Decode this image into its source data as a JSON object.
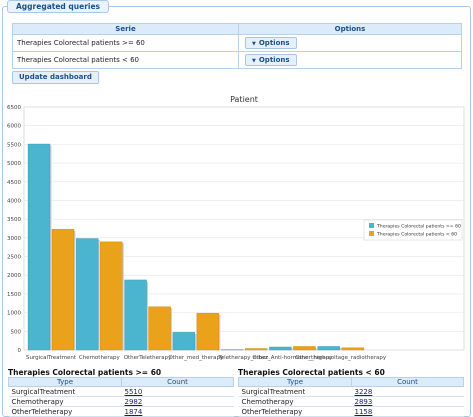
{
  "panel": {
    "title": "Aggregated queries"
  },
  "series_table": {
    "headers": [
      "Serie",
      "Options"
    ],
    "rows": [
      {
        "serie": "Therapies Colorectal patients >= 60",
        "options_label": "Options"
      },
      {
        "serie": "Therapies Colorectal patients < 60",
        "options_label": "Options"
      }
    ]
  },
  "update_button": "Update dashboard",
  "colors": {
    "series1": "#4bb4ce",
    "series2": "#eaa21b",
    "accent": "#1b4f8a"
  },
  "chart_data": {
    "type": "bar",
    "title": "Patient",
    "xlabel": "",
    "ylabel": "",
    "ylim": [
      0,
      6500
    ],
    "yticks": [
      0,
      500,
      1000,
      1500,
      2000,
      2500,
      3000,
      3500,
      4000,
      4500,
      5000,
      5500,
      6000,
      6500
    ],
    "grid": true,
    "legend_position": "right",
    "categories": [
      "SurgicalTreatment",
      "Chemotherapy",
      "OtherTeletherapy",
      "Other_med_therapy",
      "Teletherapy_n.bez.",
      "Other_Anti-hormone_therapy",
      "Other_high-voltage_radiotherapy"
    ],
    "series": [
      {
        "name": "Therapies Colorectal patients >= 60",
        "values": [
          5510,
          2982,
          1874,
          472,
          10,
          80,
          95
        ]
      },
      {
        "name": "Therapies Colorectal patients < 60",
        "values": [
          3228,
          2893,
          1158,
          985,
          40,
          95,
          60
        ]
      }
    ]
  },
  "summary_left": {
    "title": "Therapies Colorectal patients >= 60",
    "headers": [
      "Type",
      "Count"
    ],
    "rows": [
      {
        "type": "SurgicalTreatment",
        "count": "5510"
      },
      {
        "type": "Chemotherapy",
        "count": "2982"
      },
      {
        "type": "OtherTeletherapy",
        "count": "1874"
      }
    ]
  },
  "summary_right": {
    "title": "Therapies Colorectal patients < 60",
    "headers": [
      "Type",
      "Count"
    ],
    "rows": [
      {
        "type": "SurgicalTreatment",
        "count": "3228"
      },
      {
        "type": "Chemotherapy",
        "count": "2893"
      },
      {
        "type": "OtherTeletherapy",
        "count": "1158"
      }
    ]
  }
}
